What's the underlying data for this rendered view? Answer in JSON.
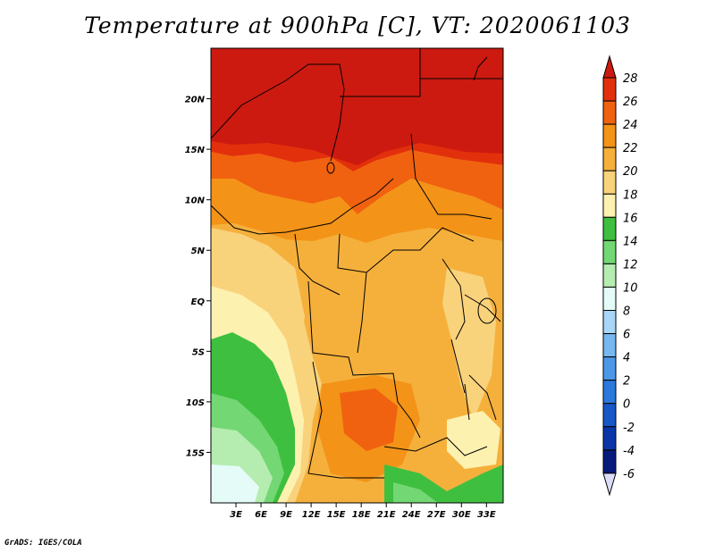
{
  "title": "Temperature at 900hPa [C], VT: 2020061103",
  "credit": "GrADS: IGES/COLA",
  "map": {
    "lon_range": [
      0,
      35
    ],
    "lat_range": [
      -20,
      25
    ],
    "lat_ticks": [
      "20N",
      "15N",
      "10N",
      "5N",
      "EQ",
      "5S",
      "10S",
      "15S"
    ],
    "lon_ticks": [
      "3E",
      "6E",
      "9E",
      "12E",
      "15E",
      "18E",
      "21E",
      "24E",
      "27E",
      "30E",
      "33E"
    ]
  },
  "colorbar": {
    "labels": [
      "28",
      "26",
      "24",
      "22",
      "20",
      "18",
      "16",
      "14",
      "12",
      "10",
      "8",
      "6",
      "4",
      "2",
      "0",
      "-2",
      "-4",
      "-6"
    ],
    "colors": {
      "above_28": "#cc1a10",
      "26_28": "#e3300c",
      "24_26": "#f0620f",
      "22_24": "#f39318",
      "20_22": "#f5b03c",
      "18_20": "#f9d27c",
      "16_18": "#fdf1b0",
      "14_16": "#3fbf3f",
      "12_14": "#73d773",
      "10_12": "#b5ecb0",
      "8_10": "#e4fbf8",
      "6_8": "#a8d6f7",
      "4_6": "#76b8ef",
      "2_4": "#4d98e6",
      "0_2": "#2c78dc",
      "m2_0": "#1857c8",
      "m4_m2": "#0b36a7",
      "m6_m4": "#081a7c",
      "below_m6": "#dcdcf6"
    }
  }
}
